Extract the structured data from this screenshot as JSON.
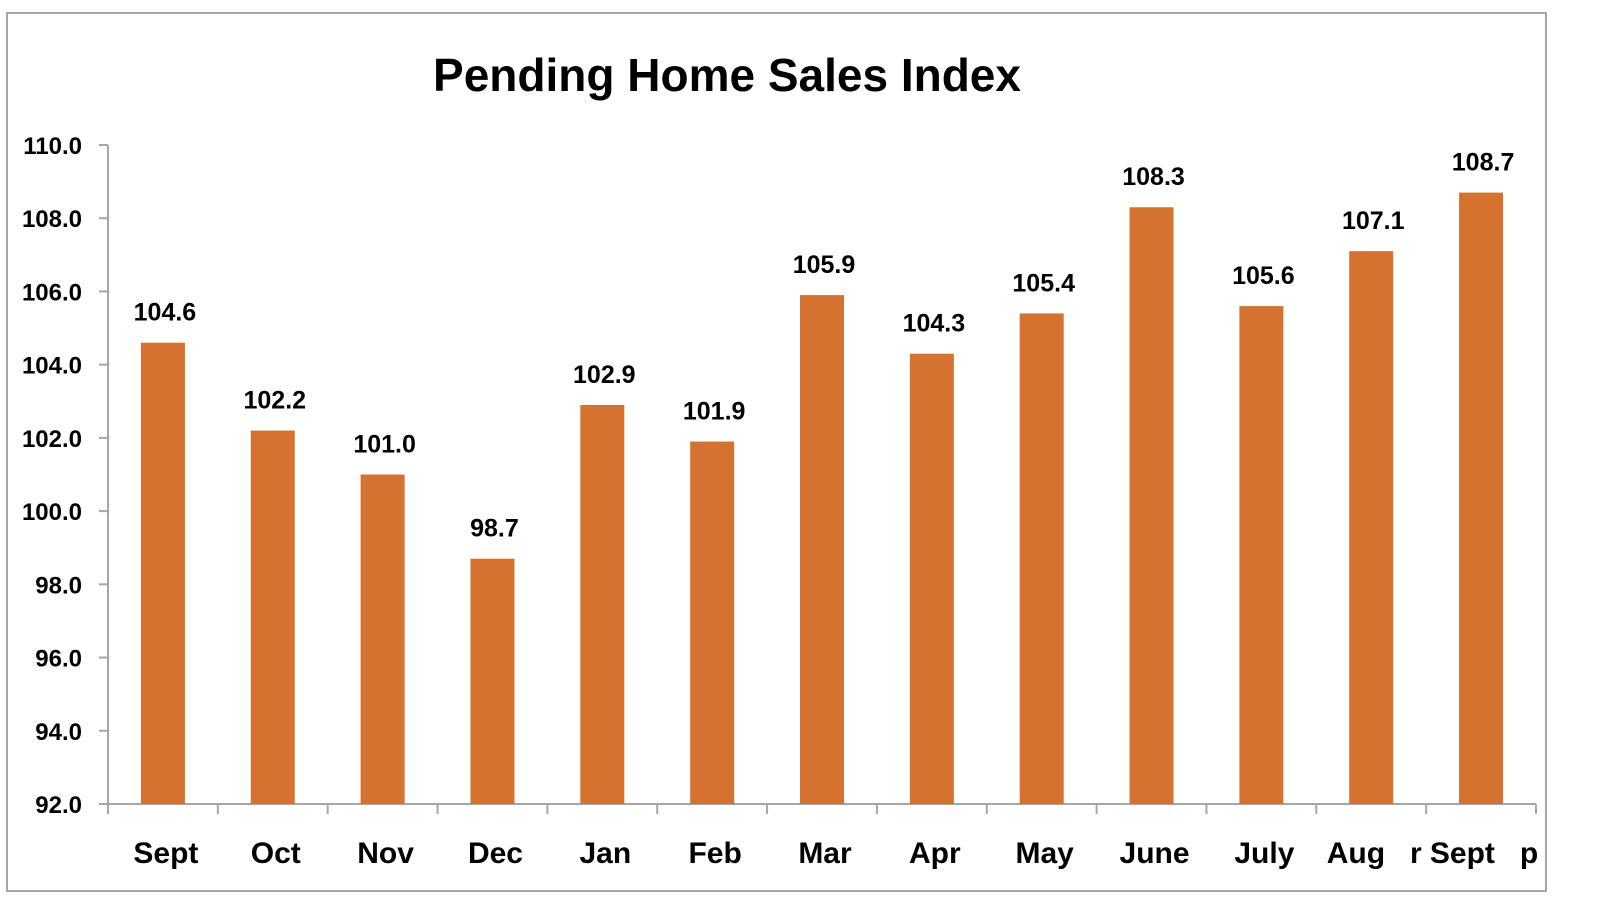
{
  "chart_data": {
    "type": "bar",
    "title": "Pending Home Sales Index",
    "xlabel": "",
    "ylabel": "",
    "categories": [
      "Sept",
      "Oct",
      "Nov",
      "Dec",
      "Jan",
      "Feb",
      "Mar",
      "Apr",
      "May",
      "June",
      "July",
      "Aug   r",
      "Sept   p"
    ],
    "values": [
      104.6,
      102.2,
      101.0,
      98.7,
      102.9,
      101.9,
      105.9,
      104.3,
      105.4,
      108.3,
      105.6,
      107.1,
      108.7
    ],
    "value_labels": [
      "104.6",
      "102.2",
      "101.0",
      "98.7",
      "102.9",
      "101.9",
      "105.9",
      "104.3",
      "105.4",
      "108.3",
      "105.6",
      "107.1",
      "108.7"
    ],
    "ylim": [
      92.0,
      110.0
    ],
    "yticks": [
      92.0,
      94.0,
      96.0,
      98.0,
      100.0,
      102.0,
      104.0,
      106.0,
      108.0,
      110.0
    ],
    "ytick_labels": [
      "92.0",
      "94.0",
      "96.0",
      "98.0",
      "100.0",
      "102.0",
      "104.0",
      "106.0",
      "108.0",
      "110.0"
    ],
    "grid": false,
    "legend": "none",
    "bar_color": "#d57230",
    "axis_color": "#a6a6a6"
  }
}
